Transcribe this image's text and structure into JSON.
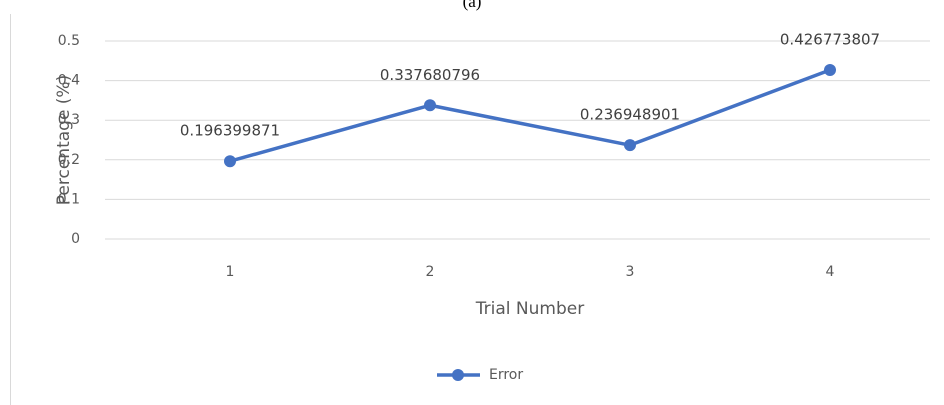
{
  "chart_data": {
    "type": "line",
    "title": "(a)",
    "x_label": "Trial Number",
    "y_label": "Percentage (%)",
    "categories": [
      "1",
      "2",
      "3",
      "4"
    ],
    "series": [
      {
        "name": "Error",
        "color": "#4472c4",
        "values": [
          0.196399871,
          0.337680796,
          0.236948901,
          0.426773807
        ]
      }
    ],
    "ylim": [
      0,
      0.5
    ],
    "yticks": [
      0,
      0.1,
      0.2,
      0.3,
      0.4,
      0.5
    ],
    "grid": true,
    "legend": "bottom"
  }
}
